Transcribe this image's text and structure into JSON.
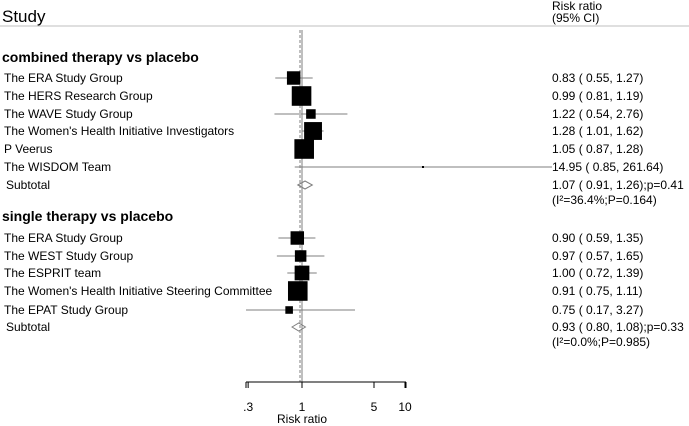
{
  "chart_data": {
    "type": "forest",
    "header": {
      "study": "Study",
      "effect_line1": "Risk ratio",
      "effect_line2": "(95% CI)"
    },
    "xlabel": "Risk ratio",
    "x_scale": "log",
    "x_ticks": [
      0.3,
      1,
      5,
      10
    ],
    "x_tick_labels": [
      ".3",
      "1",
      "5",
      "10"
    ],
    "reference_line": 1,
    "overall_dashed_line": 1.0,
    "groups": [
      {
        "name": "combined therapy vs placebo",
        "studies": [
          {
            "label": "The ERA Study Group",
            "rr": 0.83,
            "lo": 0.55,
            "hi": 1.27,
            "weight": 0.35,
            "text": "0.83 ( 0.55, 1.27)"
          },
          {
            "label": "The HERS Research Group",
            "rr": 0.99,
            "lo": 0.81,
            "hi": 1.19,
            "weight": 0.95,
            "text": "0.99 ( 0.81, 1.19)"
          },
          {
            "label": "The WAVE Study Group",
            "rr": 1.22,
            "lo": 0.54,
            "hi": 2.76,
            "weight": 0.12,
            "text": "1.22 ( 0.54, 2.76)"
          },
          {
            "label": "The Women's Health Initiative Investigators",
            "rr": 1.28,
            "lo": 1.01,
            "hi": 1.62,
            "weight": 0.75,
            "text": "1.28 ( 1.01, 1.62)"
          },
          {
            "label": "P Veerus",
            "rr": 1.05,
            "lo": 0.87,
            "hi": 1.28,
            "weight": 0.95,
            "text": "1.05 ( 0.87, 1.28)"
          },
          {
            "label": "The WISDOM Team",
            "rr": 14.95,
            "lo": 0.85,
            "hi": 261.64,
            "weight": 0.01,
            "text": "14.95 ( 0.85, 261.64)"
          }
        ],
        "subtotal": {
          "label": "Subtotal",
          "rr": 1.07,
          "lo": 0.91,
          "hi": 1.26,
          "text": "1.07 ( 0.91, 1.26);p=0.41",
          "het": "(I²=36.4%;P=0.164)"
        }
      },
      {
        "name": "single therapy vs placebo",
        "studies": [
          {
            "label": "The ERA Study Group",
            "rr": 0.9,
            "lo": 0.59,
            "hi": 1.35,
            "weight": 0.35,
            "text": "0.90 ( 0.59, 1.35)"
          },
          {
            "label": "The WEST Study Group",
            "rr": 0.97,
            "lo": 0.57,
            "hi": 1.65,
            "weight": 0.22,
            "text": "0.97 ( 0.57, 1.65)"
          },
          {
            "label": "The ESPRIT team",
            "rr": 1.0,
            "lo": 0.72,
            "hi": 1.39,
            "weight": 0.45,
            "text": "1.00 ( 0.72, 1.39)"
          },
          {
            "label": "The Women's Health Initiative Steering Committee",
            "rr": 0.91,
            "lo": 0.75,
            "hi": 1.11,
            "weight": 0.95,
            "text": "0.91 ( 0.75, 1.11)"
          },
          {
            "label": "The EPAT Study Group",
            "rr": 0.75,
            "lo": 0.17,
            "hi": 3.27,
            "weight": 0.05,
            "text": "0.75 ( 0.17, 3.27)"
          }
        ],
        "subtotal": {
          "label": "Subtotal",
          "rr": 0.93,
          "lo": 0.8,
          "hi": 1.08,
          "text": "0.93 ( 0.80, 1.08);p=0.33",
          "het": "(I²=0.0%;P=0.985)"
        }
      }
    ],
    "colors": {
      "marker": "#000000",
      "ci_line": "#7f7f7f",
      "reference": "#7f7f7f",
      "diamond": "#7f7f7f",
      "dashed": "#7f7f7f",
      "header_rule": "#bfbfbf"
    }
  }
}
